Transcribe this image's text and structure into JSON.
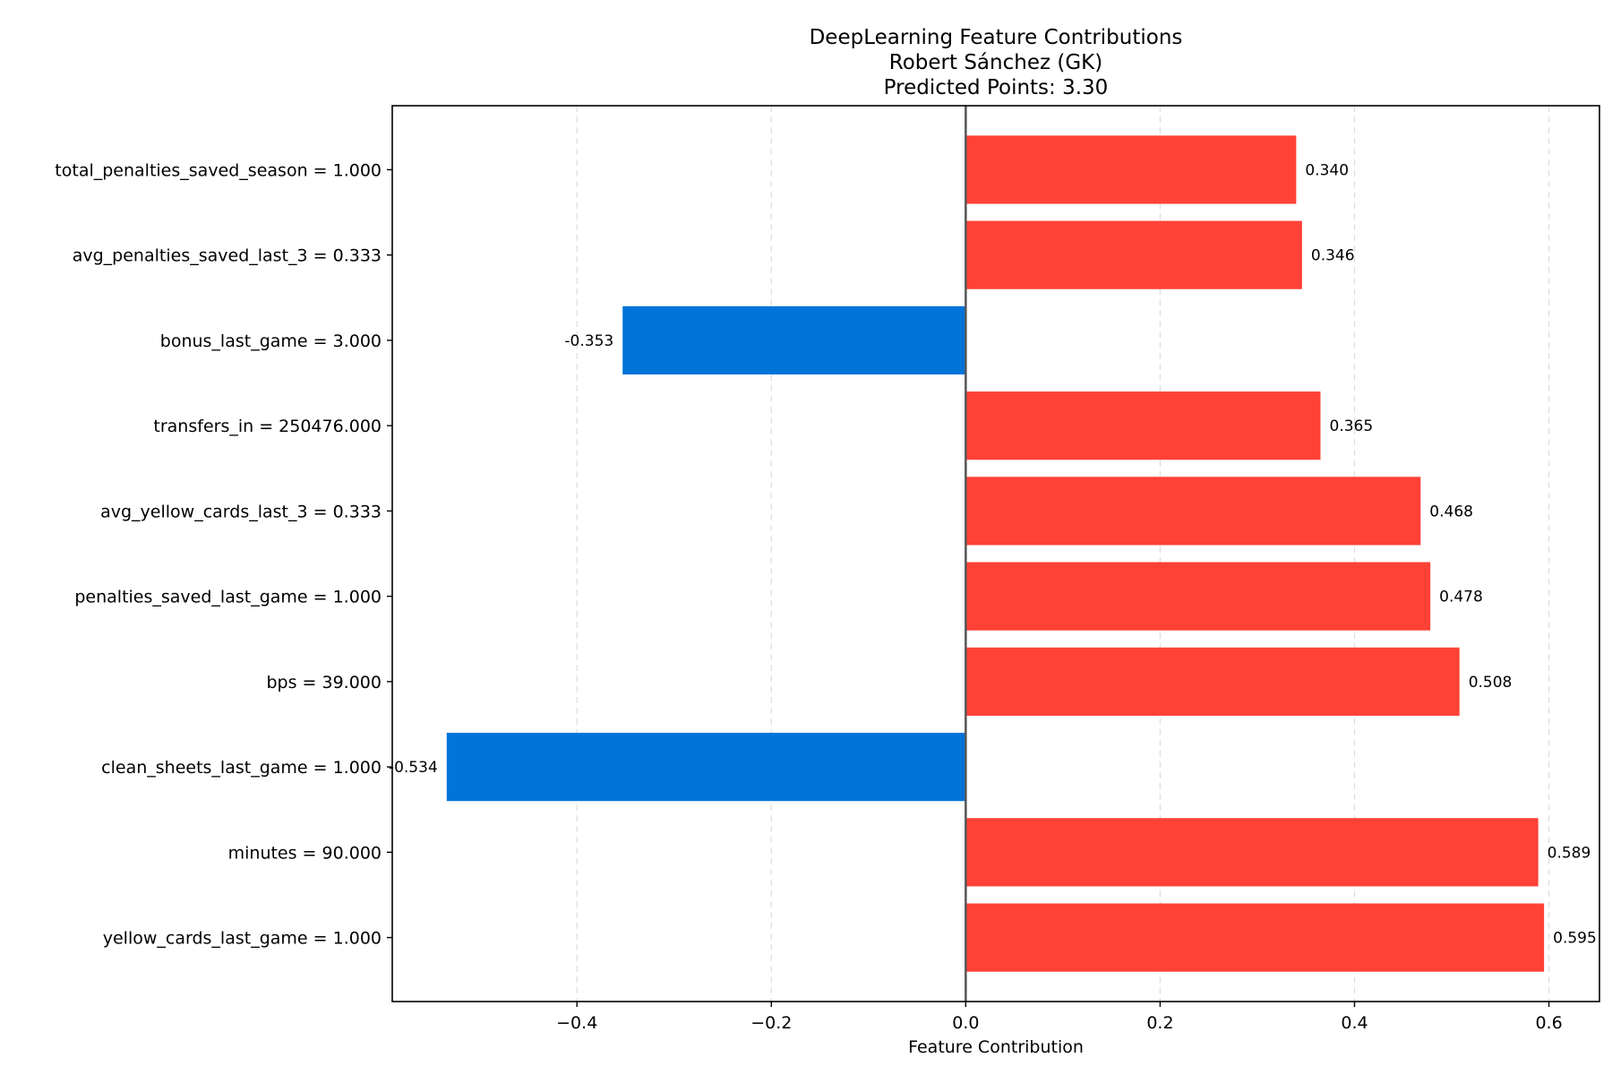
{
  "chart_data": {
    "type": "bar",
    "orientation": "horizontal",
    "title": "DeepLearning Feature Contributions",
    "subtitle_lines": [
      "Robert Sánchez (GK)",
      "Predicted Points: 3.30"
    ],
    "xlabel": "Feature Contribution",
    "ylabel": "",
    "categories": [
      "total_penalties_saved_season = 1.000",
      "avg_penalties_saved_last_3 = 0.333",
      "bonus_last_game = 3.000",
      "transfers_in = 250476.000",
      "avg_yellow_cards_last_3 = 0.333",
      "penalties_saved_last_game = 1.000",
      "bps = 39.000",
      "clean_sheets_last_game = 1.000",
      "minutes = 90.000",
      "yellow_cards_last_game = 1.000"
    ],
    "values": [
      0.34,
      0.346,
      -0.353,
      0.365,
      0.468,
      0.478,
      0.508,
      -0.534,
      0.589,
      0.595
    ],
    "value_labels": [
      "0.340",
      "0.346",
      "-0.353",
      "0.365",
      "0.468",
      "0.478",
      "0.508",
      "-0.534",
      "0.589",
      "0.595"
    ],
    "xlim": [
      -0.59,
      0.652
    ],
    "xticks": [
      -0.4,
      -0.2,
      0.0,
      0.2,
      0.4,
      0.6
    ],
    "xtick_labels": [
      "−0.4",
      "−0.2",
      "0.0",
      "0.2",
      "0.4",
      "0.6"
    ],
    "grid": "x-axis dashed",
    "zero_line": true,
    "colors": {
      "positive": "#ff4136",
      "negative": "#0074d9",
      "grid": "#dddddd",
      "zero_line": "#555555",
      "axes": "#000000"
    }
  }
}
